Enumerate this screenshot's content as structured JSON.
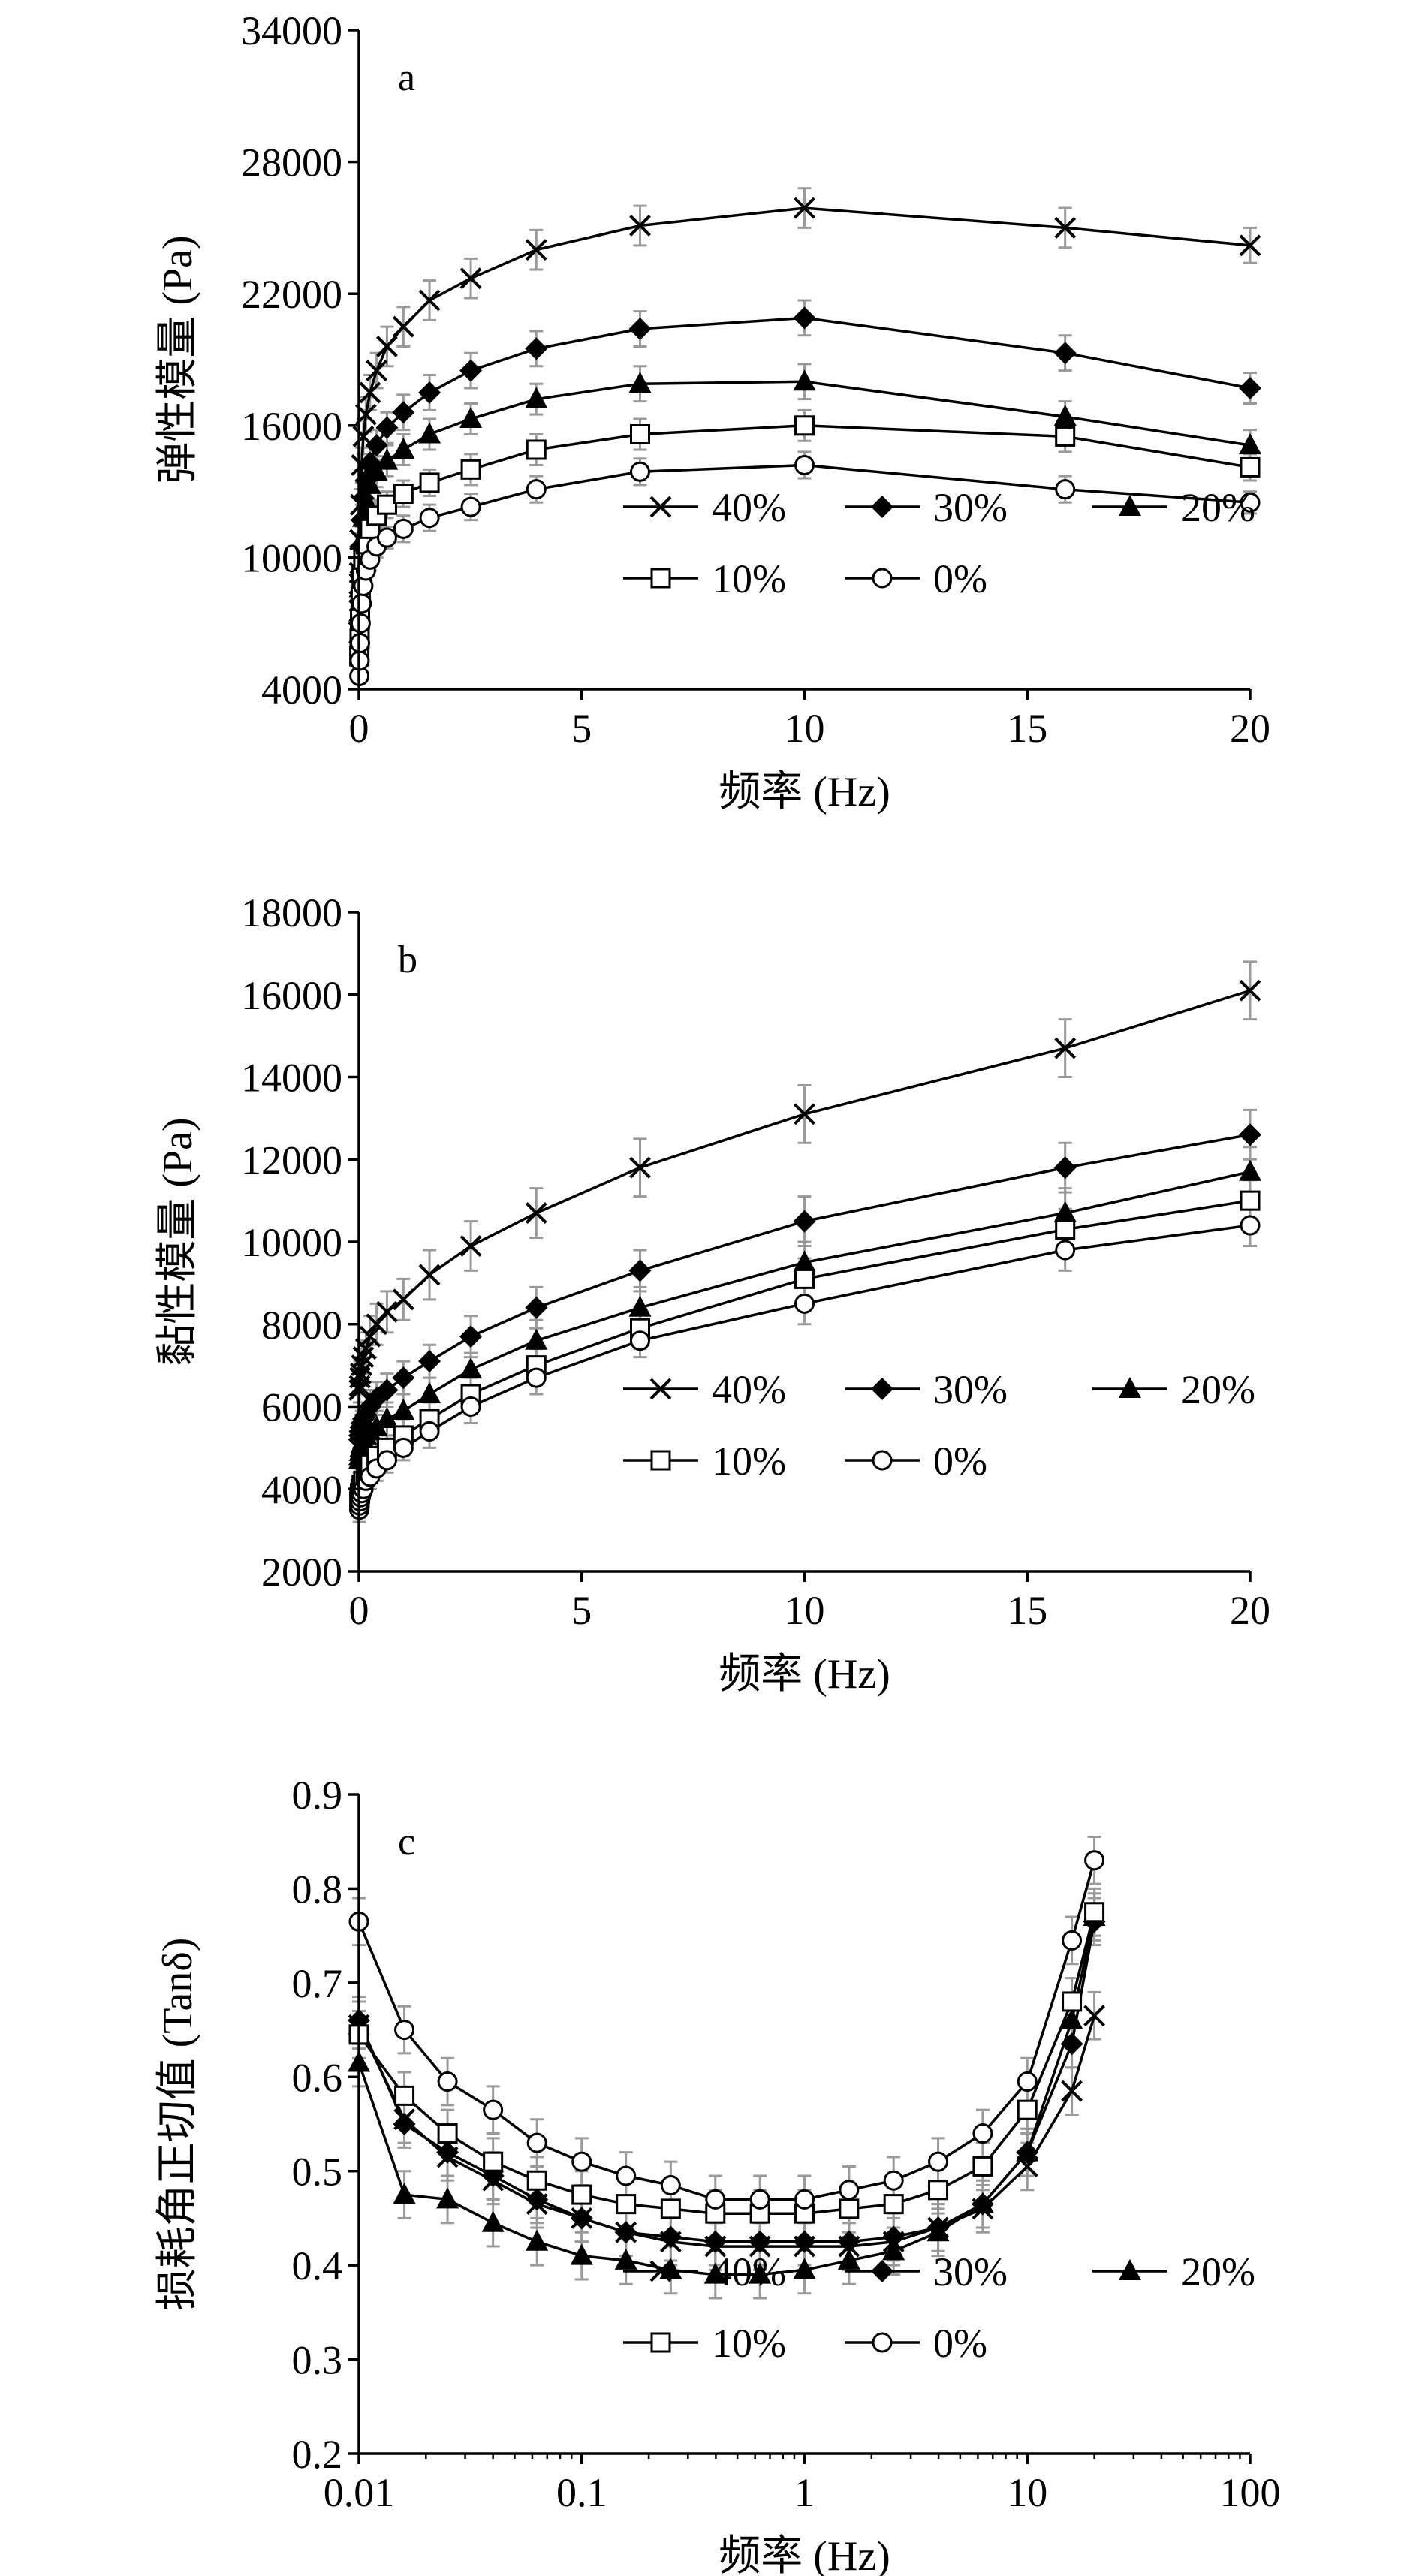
{
  "chart_data": [
    {
      "type": "line",
      "panel": "a",
      "xlabel": "频率 (Hz)",
      "ylabel": "弹性模量 (Pa)",
      "xlim": [
        0,
        20
      ],
      "ylim": [
        4000,
        34000
      ],
      "xticks": [
        0,
        5,
        10,
        15,
        20
      ],
      "yticks": [
        4000,
        10000,
        16000,
        22000,
        28000,
        34000
      ],
      "x_scale": "linear",
      "legend": "bottom-right",
      "grid": false,
      "error_bars": true,
      "x": [
        0.01,
        0.016,
        0.025,
        0.04,
        0.063,
        0.1,
        0.158,
        0.251,
        0.398,
        0.631,
        1,
        1.585,
        2.512,
        3.981,
        6.31,
        10,
        15.85,
        20
      ],
      "series": [
        {
          "name": "40%",
          "marker": "x",
          "values": [
            8000,
            9300,
            10800,
            12400,
            14200,
            15500,
            16500,
            17500,
            18500,
            19600,
            20500,
            21700,
            22700,
            24000,
            25100,
            25900,
            25000,
            24200
          ],
          "error": [
            600,
            600,
            700,
            700,
            800,
            800,
            800,
            800,
            800,
            900,
            900,
            900,
            900,
            900,
            900,
            900,
            900,
            800
          ]
        },
        {
          "name": "30%",
          "marker": "diamond",
          "values": [
            7000,
            8000,
            9200,
            10500,
            11700,
            12700,
            13500,
            14300,
            15100,
            15900,
            16600,
            17500,
            18500,
            19500,
            20400,
            20900,
            19300,
            17700
          ],
          "error": [
            500,
            500,
            600,
            600,
            700,
            700,
            700,
            700,
            700,
            700,
            800,
            800,
            800,
            800,
            800,
            800,
            800,
            700
          ]
        },
        {
          "name": "20%",
          "marker": "triangle",
          "values": [
            6500,
            7500,
            8600,
            9700,
            10800,
            11800,
            12600,
            13300,
            13900,
            14400,
            14900,
            15600,
            16300,
            17200,
            17900,
            18000,
            16400,
            15100
          ],
          "error": [
            500,
            500,
            500,
            600,
            600,
            600,
            600,
            700,
            700,
            700,
            700,
            700,
            700,
            700,
            800,
            800,
            700,
            700
          ]
        },
        {
          "name": "10%",
          "marker": "square",
          "values": [
            5500,
            6300,
            7200,
            8200,
            9100,
            9900,
            10600,
            11300,
            11900,
            12400,
            12900,
            13400,
            14000,
            14900,
            15600,
            16000,
            15500,
            14100
          ],
          "error": [
            400,
            400,
            500,
            500,
            500,
            600,
            600,
            600,
            600,
            600,
            600,
            600,
            700,
            700,
            700,
            700,
            700,
            600
          ]
        },
        {
          "name": "0%",
          "marker": "circle",
          "values": [
            4600,
            5300,
            6100,
            7000,
            7900,
            8700,
            9400,
            9900,
            10500,
            10900,
            11300,
            11800,
            12300,
            13100,
            13900,
            14200,
            13100,
            12500
          ],
          "error": [
            300,
            400,
            400,
            400,
            500,
            500,
            500,
            500,
            500,
            500,
            600,
            600,
            600,
            600,
            600,
            600,
            600,
            500
          ]
        }
      ]
    },
    {
      "type": "line",
      "panel": "b",
      "xlabel": "频率 (Hz)",
      "ylabel": "黏性模量 (Pa)",
      "xlim": [
        0,
        20
      ],
      "ylim": [
        2000,
        18000
      ],
      "xticks": [
        0,
        5,
        10,
        15,
        20
      ],
      "yticks": [
        2000,
        4000,
        6000,
        8000,
        10000,
        12000,
        14000,
        16000,
        18000
      ],
      "x_scale": "linear",
      "legend": "bottom-right",
      "grid": false,
      "error_bars": true,
      "x": [
        0.01,
        0.016,
        0.025,
        0.04,
        0.063,
        0.1,
        0.158,
        0.251,
        0.398,
        0.631,
        1,
        1.585,
        2.512,
        3.981,
        6.31,
        10,
        15.85,
        20
      ],
      "series": [
        {
          "name": "40%",
          "marker": "x",
          "values": [
            6400,
            6500,
            6700,
            6800,
            7000,
            7200,
            7400,
            7700,
            8000,
            8300,
            8600,
            9200,
            9900,
            10700,
            11800,
            13100,
            14700,
            16100
          ],
          "error": [
            400,
            400,
            400,
            400,
            400,
            400,
            400,
            500,
            500,
            500,
            500,
            600,
            600,
            600,
            700,
            700,
            700,
            700
          ]
        },
        {
          "name": "30%",
          "marker": "diamond",
          "values": [
            5200,
            5300,
            5400,
            5500,
            5600,
            5700,
            5800,
            6000,
            6200,
            6400,
            6700,
            7100,
            7700,
            8400,
            9300,
            10500,
            11800,
            12600
          ],
          "error": [
            300,
            300,
            300,
            300,
            300,
            300,
            300,
            400,
            400,
            400,
            400,
            400,
            500,
            500,
            500,
            600,
            600,
            600
          ]
        },
        {
          "name": "20%",
          "marker": "triangle",
          "values": [
            4700,
            4800,
            4900,
            5000,
            5100,
            5200,
            5300,
            5400,
            5500,
            5700,
            5900,
            6300,
            6900,
            7600,
            8400,
            9500,
            10700,
            11700
          ],
          "error": [
            300,
            300,
            300,
            300,
            300,
            300,
            300,
            300,
            400,
            400,
            400,
            400,
            400,
            500,
            500,
            500,
            600,
            600
          ]
        },
        {
          "name": "10%",
          "marker": "square",
          "values": [
            3700,
            3800,
            3900,
            4000,
            4100,
            4200,
            4400,
            4600,
            4800,
            5000,
            5300,
            5700,
            6300,
            7000,
            7900,
            9100,
            10300,
            11000
          ],
          "error": [
            300,
            300,
            300,
            300,
            300,
            300,
            300,
            300,
            300,
            300,
            400,
            400,
            400,
            400,
            500,
            500,
            500,
            500
          ]
        },
        {
          "name": "0%",
          "marker": "circle",
          "values": [
            3500,
            3600,
            3700,
            3800,
            3900,
            4000,
            4200,
            4300,
            4500,
            4700,
            5000,
            5400,
            6000,
            6700,
            7600,
            8500,
            9800,
            10400
          ],
          "error": [
            300,
            300,
            300,
            300,
            300,
            300,
            300,
            300,
            300,
            300,
            300,
            400,
            400,
            400,
            400,
            500,
            500,
            500
          ]
        }
      ]
    },
    {
      "type": "line",
      "panel": "c",
      "xlabel": "频率 (Hz)",
      "ylabel": "损耗角正切值 (Tanδ)",
      "xlim": [
        0.01,
        100
      ],
      "ylim": [
        0.2,
        0.9
      ],
      "xticks": [
        0.01,
        0.1,
        1,
        10,
        100
      ],
      "xtick_labels": [
        "0.01",
        "0.1",
        "1",
        "10",
        "100"
      ],
      "yticks": [
        0.2,
        0.3,
        0.4,
        0.5,
        0.6,
        0.7,
        0.8,
        0.9
      ],
      "ytick_labels": [
        "0.2",
        "0.3",
        "0.4",
        "0.5",
        "0.6",
        "0.7",
        "0.8",
        "0.9"
      ],
      "x_scale": "log",
      "legend": "bottom-right",
      "grid": false,
      "error_bars": true,
      "x": [
        0.01,
        0.016,
        0.025,
        0.04,
        0.063,
        0.1,
        0.158,
        0.251,
        0.398,
        0.631,
        1,
        1.585,
        2.512,
        3.981,
        6.31,
        10,
        15.85,
        20
      ],
      "series": [
        {
          "name": "40%",
          "marker": "x",
          "values": [
            0.655,
            0.555,
            0.515,
            0.49,
            0.465,
            0.45,
            0.435,
            0.425,
            0.42,
            0.42,
            0.42,
            0.42,
            0.425,
            0.44,
            0.46,
            0.505,
            0.585,
            0.665
          ],
          "error": [
            0.025,
            0.025,
            0.025,
            0.025,
            0.025,
            0.025,
            0.025,
            0.025,
            0.025,
            0.025,
            0.025,
            0.025,
            0.025,
            0.025,
            0.025,
            0.025,
            0.025,
            0.025
          ]
        },
        {
          "name": "30%",
          "marker": "diamond",
          "values": [
            0.66,
            0.55,
            0.52,
            0.495,
            0.47,
            0.45,
            0.435,
            0.43,
            0.425,
            0.425,
            0.425,
            0.425,
            0.43,
            0.44,
            0.465,
            0.52,
            0.635,
            0.765
          ],
          "error": [
            0.025,
            0.025,
            0.025,
            0.025,
            0.025,
            0.025,
            0.025,
            0.025,
            0.025,
            0.025,
            0.025,
            0.025,
            0.025,
            0.025,
            0.025,
            0.025,
            0.025,
            0.025
          ]
        },
        {
          "name": "20%",
          "marker": "triangle",
          "values": [
            0.615,
            0.475,
            0.47,
            0.445,
            0.425,
            0.41,
            0.405,
            0.395,
            0.39,
            0.39,
            0.395,
            0.405,
            0.415,
            0.435,
            0.465,
            0.52,
            0.66,
            0.77
          ],
          "error": [
            0.025,
            0.025,
            0.025,
            0.025,
            0.025,
            0.025,
            0.025,
            0.025,
            0.025,
            0.025,
            0.025,
            0.025,
            0.025,
            0.025,
            0.025,
            0.025,
            0.025,
            0.025
          ]
        },
        {
          "name": "10%",
          "marker": "square",
          "values": [
            0.645,
            0.58,
            0.54,
            0.51,
            0.49,
            0.475,
            0.465,
            0.46,
            0.455,
            0.455,
            0.455,
            0.46,
            0.465,
            0.48,
            0.505,
            0.565,
            0.68,
            0.775
          ],
          "error": [
            0.025,
            0.025,
            0.025,
            0.025,
            0.025,
            0.025,
            0.025,
            0.025,
            0.025,
            0.025,
            0.025,
            0.025,
            0.025,
            0.025,
            0.025,
            0.025,
            0.025,
            0.025
          ]
        },
        {
          "name": "0%",
          "marker": "circle",
          "values": [
            0.765,
            0.65,
            0.595,
            0.565,
            0.53,
            0.51,
            0.495,
            0.485,
            0.47,
            0.47,
            0.47,
            0.48,
            0.49,
            0.51,
            0.54,
            0.595,
            0.745,
            0.83
          ],
          "error": [
            0.025,
            0.025,
            0.025,
            0.025,
            0.025,
            0.025,
            0.025,
            0.025,
            0.025,
            0.025,
            0.025,
            0.025,
            0.025,
            0.025,
            0.025,
            0.025,
            0.025,
            0.025
          ]
        }
      ]
    }
  ]
}
